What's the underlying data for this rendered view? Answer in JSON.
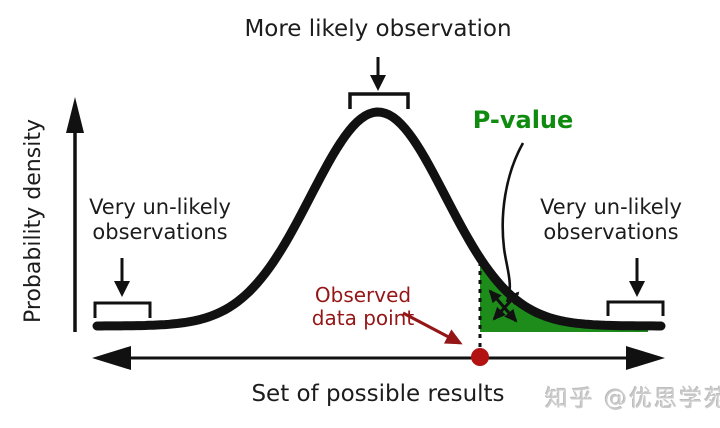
{
  "figure": {
    "y_axis_label": "Probability density",
    "x_axis_label": "Set of possible results"
  },
  "annotations": {
    "more_likely": "More likely observation",
    "unlikely_left": {
      "line1": "Very un-likely",
      "line2": "observations"
    },
    "unlikely_right": {
      "line1": "Very un-likely",
      "line2": "observations"
    },
    "p_value": "P-value",
    "observed": {
      "line1": "Observed",
      "line2": "data point"
    }
  },
  "watermark": "知乎 @优思学苑",
  "colors": {
    "curve_black": "#111111",
    "p_value_text_green": "#0f8c0f",
    "p_value_area_green": "#1d8c1a",
    "observed_dark_red": "#951616",
    "observed_dot_red": "#b31212",
    "label_text": "#1c1c1c",
    "watermark_gray": "#cbcbcb"
  }
}
